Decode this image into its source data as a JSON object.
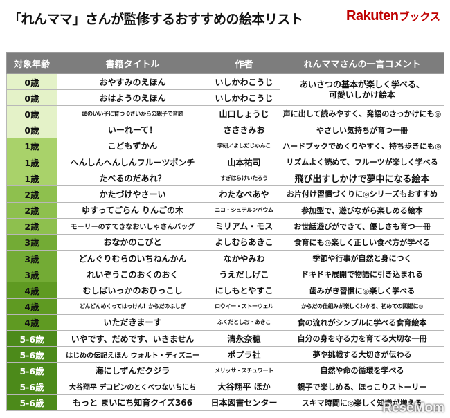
{
  "header": {
    "title": "「れんママ」さんが監修するおすすめの絵本リスト",
    "brand_main": "Rakuten",
    "brand_sub": "ブックス"
  },
  "table": {
    "columns": [
      "対象年齢",
      "書籍タイトル",
      "作者",
      "れんママさんの一言コメント"
    ],
    "rows": [
      {
        "age": "0歳",
        "title": "おやすみのえほん",
        "author": "いしかわこうじ",
        "comment_line1": "あいさつの基本が楽しく学べる、",
        "comment_line2": "可愛いしかけ絵本"
      },
      {
        "age": "0歳",
        "title": "おはようのえほん",
        "author": "いしかわこうじ"
      },
      {
        "age": "0歳",
        "title": "頭のいい子に育つ 0さいからの親子で音読",
        "author": "山口しょうじ",
        "comment": "声に出して読みやすく、発語のきっかけにも◎"
      },
      {
        "age": "0歳",
        "title": "いーれーて！",
        "author": "ささきみお",
        "comment": "やさしい気持ちが育つ一冊"
      },
      {
        "age": "1歳",
        "title": "こどもずかん",
        "author": "学研／よしだじゅんこ",
        "comment": "ハードブックでめくりやすく、持ち歩きにも◎"
      },
      {
        "age": "1歳",
        "title": "へんしんへんしんフルーツポンチ",
        "author": "山本祐司",
        "comment": "リズムよく読めて、フルーツが楽しく学べる"
      },
      {
        "age": "1歳",
        "title": "たべるのだあれ？",
        "author": "すぎはらけいたろう",
        "comment": "飛び出すしかけで夢中になる絵本"
      },
      {
        "age": "2歳",
        "title": "かたづけやさーい",
        "author": "わたなべあや",
        "comment": "お片付け習慣づくりに◎シリーズもおすすめ"
      },
      {
        "age": "2歳",
        "title": "ゆすってごらん りんごの木",
        "author": "ニコ・シュテルンバウム",
        "comment": "参加型で、遊びながら楽しめる絵本"
      },
      {
        "age": "2歳",
        "title": "モーリーのすてきなおいしゃさんバッグ",
        "author": "ミリアム・モス",
        "comment": "お世話遊びができて、優しさも育つ一冊"
      },
      {
        "age": "3歳",
        "title": "おなかのこびと",
        "author": "よしむらあきこ",
        "comment": "食育にも◎楽しく正しい食べ方が学べる"
      },
      {
        "age": "3歳",
        "title": "どんぐりむらのいちねんかん",
        "author": "なかやみわ",
        "comment": "季節や行事が自然と身につく"
      },
      {
        "age": "3歳",
        "title": "れいぞうこのおくのおく",
        "author": "うえだしげこ",
        "comment": "ドキドキ展開で物語に引き込まれる"
      },
      {
        "age": "4歳",
        "title": "むしばいっかのおひっこし",
        "author": "にしもとやすこ",
        "comment": "歯みがき習慣に◎楽しく学べる"
      },
      {
        "age": "4歳",
        "title": "どんどんめくってはっけん！からだのふしぎ",
        "author": "ロウイー・ストーウェル",
        "comment": "からだの仕組みが楽しくわかる、初めての図鑑に◎"
      },
      {
        "age": "4歳",
        "title": "いただきまーす",
        "author": "ふくだとしお・あきこ",
        "comment": "食の流れがシンプルに学べる食育絵本"
      },
      {
        "age": "5-6歳",
        "title": "いやです、だめです、いきません",
        "author": "清永奈穂",
        "comment": "自分の身を守る力を育てる大切な一冊"
      },
      {
        "age": "5-6歳",
        "title": "はじめの伝記えほん ウォルト・ディズニー",
        "author": "ポプラ社",
        "comment": "夢や挑戦する大切さが伝わる"
      },
      {
        "age": "5-6歳",
        "title": "海にしずんだクジラ",
        "author": "メリッサ・スチュワート",
        "comment": "自然や命の循環を学べる"
      },
      {
        "age": "5-6歳",
        "title": "大谷翔平 デコピンのとくべつないちにち",
        "author": "大谷翔平 ほか",
        "comment": "親子で楽しめる、ほっこりストーリー"
      },
      {
        "age": "5-6歳",
        "title": "もっと まいにち知育クイズ366",
        "author": "日本図書センター",
        "comment": "スキマ時間に◎楽しく知識が増える"
      }
    ]
  },
  "watermark": "ReseMom"
}
